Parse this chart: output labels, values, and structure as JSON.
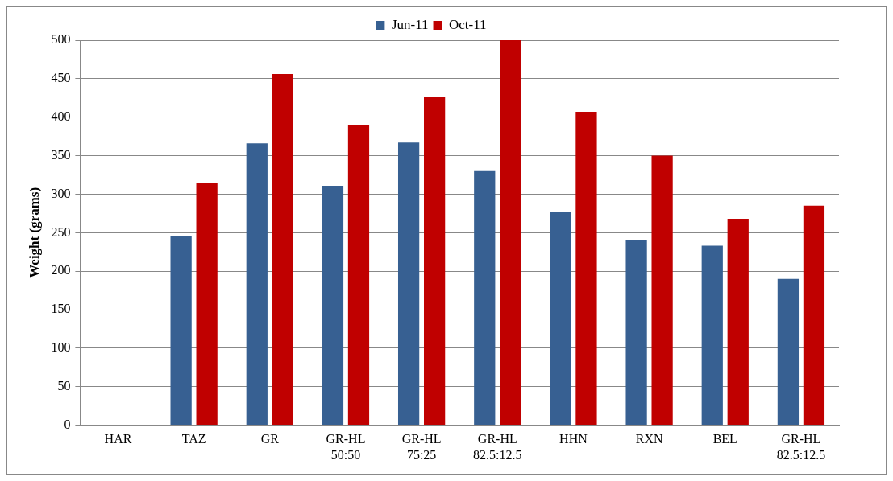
{
  "chart_data": {
    "type": "bar",
    "ylabel": "Weight (grams)",
    "categories": [
      "HAR",
      "TAZ",
      "GR",
      "GR-HL 50:50",
      "GR-HL 75:25",
      "GR-HL 82.5:12.5",
      "HHN",
      "RXN",
      "BEL",
      "GR-HL 82.5:12.5"
    ],
    "series": [
      {
        "name": "Jun-11",
        "color": "#376092",
        "values": [
          null,
          245,
          366,
          311,
          367,
          331,
          277,
          241,
          233,
          190
        ]
      },
      {
        "name": "Oct-11",
        "color": "#c00000",
        "values": [
          null,
          315,
          456,
          390,
          426,
          500,
          407,
          350,
          268,
          285
        ]
      }
    ],
    "ylim": [
      0,
      500
    ],
    "yticks": [
      0,
      50,
      100,
      150,
      200,
      250,
      300,
      350,
      400,
      450,
      500
    ],
    "grid": "y",
    "legend": "top"
  }
}
